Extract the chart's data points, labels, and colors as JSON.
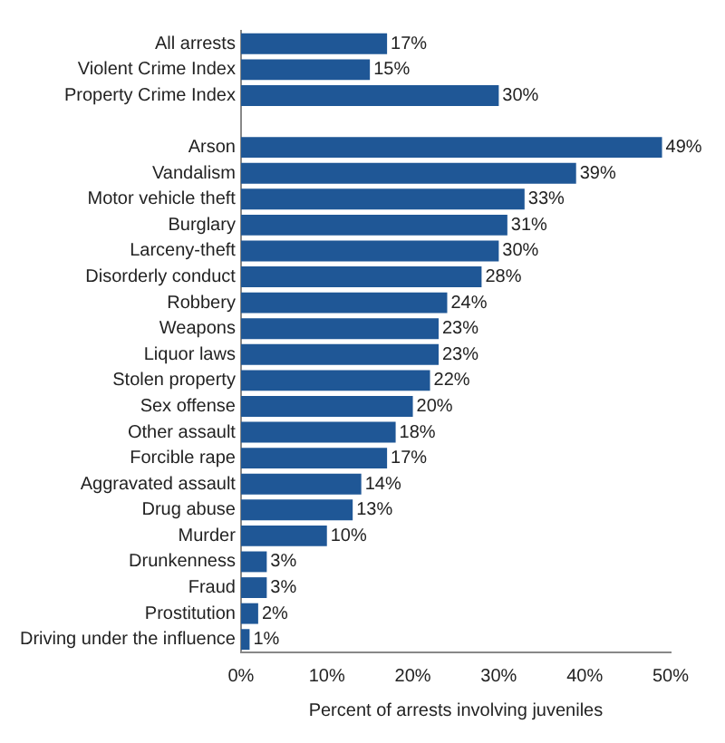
{
  "chart_data": {
    "type": "bar",
    "orientation": "horizontal",
    "xlabel": "Percent of arrests involving juveniles",
    "categories": [
      "All arrests",
      "Violent Crime Index",
      "Property Crime Index",
      null,
      "Arson",
      "Vandalism",
      "Motor vehicle theft",
      "Burglary",
      "Larceny-theft",
      "Disorderly conduct",
      "Robbery",
      "Weapons",
      "Liquor laws",
      "Stolen property",
      "Sex offense",
      "Other assault",
      "Forcible rape",
      "Aggravated assault",
      "Drug abuse",
      "Murder",
      "Drunkenness",
      "Fraud",
      "Prostitution",
      "Driving under the influence"
    ],
    "values": [
      17,
      15,
      30,
      null,
      49,
      39,
      33,
      31,
      30,
      28,
      24,
      23,
      23,
      22,
      20,
      18,
      17,
      14,
      13,
      10,
      3,
      3,
      2,
      1
    ],
    "value_labels": [
      "17%",
      "15%",
      "30%",
      null,
      "49%",
      "39%",
      "33%",
      "31%",
      "30%",
      "28%",
      "24%",
      "23%",
      "23%",
      "22%",
      "20%",
      "18%",
      "17%",
      "14%",
      "13%",
      "10%",
      "3%",
      "3%",
      "2%",
      "1%"
    ],
    "color": "#1f5796",
    "xlim": [
      0,
      50
    ],
    "xticks": [
      {
        "value": 0,
        "label": "0%"
      },
      {
        "value": 10,
        "label": "10%"
      },
      {
        "value": 20,
        "label": "20%"
      },
      {
        "value": 30,
        "label": "30%"
      },
      {
        "value": 40,
        "label": "40%"
      },
      {
        "value": 50,
        "label": "50%"
      }
    ],
    "grid": false,
    "legend": false
  }
}
